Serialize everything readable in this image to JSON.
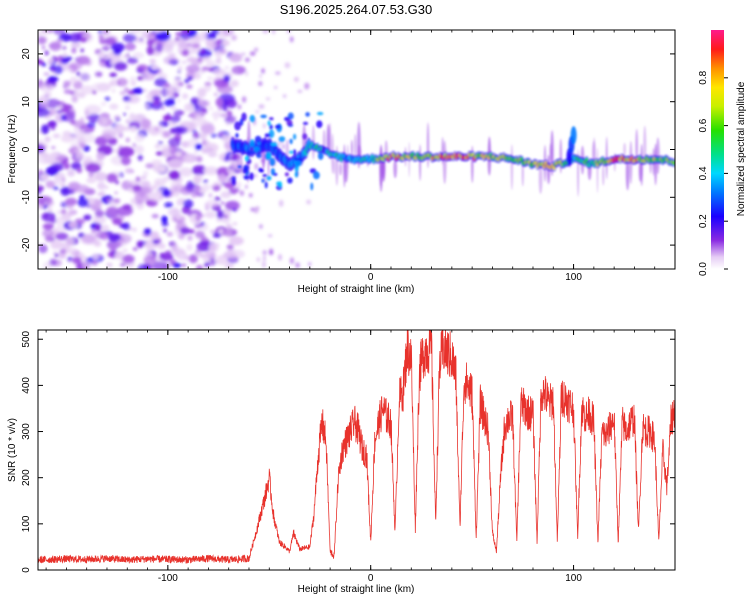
{
  "figure_title": "S196.2025.264.07.53.G30",
  "chart_data": [
    {
      "type": "heatmap",
      "description_axes": "spectrogram",
      "xlabel": "Height of straight line (km)",
      "ylabel": "Frequency (Hz)",
      "xlim": [
        -164,
        150
      ],
      "ylim": [
        -25,
        25
      ],
      "xticks": [
        -100,
        0,
        100
      ],
      "yticks": [
        -20,
        -10,
        0,
        10,
        20
      ],
      "xtick_labels": [
        "-100",
        "0",
        "100"
      ],
      "ytick_labels": [
        "-20",
        "-10",
        "0",
        "10",
        "20"
      ],
      "colorbar": {
        "label": "Normalized spectral amplitude",
        "range": [
          0,
          1
        ],
        "ticks": [
          "0.0",
          "0.2",
          "0.4",
          "0.6",
          "0.8"
        ],
        "tick_values": [
          0.0,
          0.2,
          0.4,
          0.6,
          0.8
        ]
      },
      "noise_region_x": [
        -164,
        -65
      ],
      "signal_track": {
        "x": [
          -68,
          -60,
          -50,
          -45,
          -40,
          -35,
          -30,
          -20,
          -10,
          0,
          10,
          20,
          30,
          40,
          50,
          60,
          70,
          80,
          90,
          100,
          110,
          120,
          130,
          140,
          150
        ],
        "freq_hz": [
          1,
          0,
          1,
          -1,
          -3,
          -2,
          1,
          -1,
          -2,
          -2,
          -1.5,
          -1.5,
          -1.5,
          -1.5,
          -1.5,
          -1.5,
          -2,
          -3,
          -3.5,
          -2,
          -3,
          -2,
          -2,
          -2,
          -2.5
        ],
        "amplitude": [
          0.3,
          0.35,
          0.3,
          0.3,
          0.35,
          0.35,
          0.45,
          0.5,
          0.4,
          0.45,
          0.9,
          0.7,
          0.8,
          0.9,
          0.85,
          0.7,
          0.6,
          0.7,
          0.8,
          0.5,
          0.6,
          0.9,
          0.85,
          0.7,
          0.6
        ]
      }
    },
    {
      "type": "line",
      "xlabel": "Height of straight line (km)",
      "ylabel": "SNR (10 * v/v)",
      "xlim": [
        -164,
        150
      ],
      "ylim": [
        0,
        520
      ],
      "xticks": [
        -100,
        0,
        100
      ],
      "yticks": [
        0,
        100,
        200,
        300,
        400,
        500
      ],
      "xtick_labels": [
        "-100",
        "0",
        "100"
      ],
      "ytick_labels": [
        "0",
        "100",
        "200",
        "300",
        "400",
        "500"
      ],
      "line_color": "#e8322c",
      "series": [
        {
          "name": "SNR",
          "x": [
            -164,
            -150,
            -140,
            -130,
            -120,
            -110,
            -100,
            -90,
            -80,
            -70,
            -60,
            -56,
            -52,
            -50,
            -48,
            -45,
            -42,
            -40,
            -38,
            -35,
            -30,
            -28,
            -26,
            -24,
            -22,
            -20,
            -18,
            -16,
            -14,
            -12,
            -10,
            -8,
            -6,
            -4,
            -2,
            0,
            2,
            4,
            6,
            8,
            10,
            12,
            14,
            16,
            18,
            20,
            22,
            24,
            26,
            28,
            30,
            32,
            34,
            36,
            38,
            40,
            42,
            44,
            46,
            48,
            50,
            52,
            54,
            56,
            58,
            60,
            62,
            64,
            66,
            68,
            70,
            72,
            74,
            76,
            78,
            80,
            82,
            84,
            86,
            88,
            90,
            92,
            94,
            96,
            98,
            100,
            102,
            104,
            106,
            108,
            110,
            112,
            114,
            116,
            118,
            120,
            122,
            124,
            126,
            128,
            130,
            132,
            134,
            136,
            138,
            140,
            142,
            144,
            146,
            148,
            150
          ],
          "y": [
            22,
            24,
            23,
            25,
            22,
            24,
            23,
            22,
            25,
            22,
            25,
            90,
            160,
            200,
            120,
            60,
            50,
            40,
            80,
            45,
            50,
            120,
            240,
            320,
            280,
            40,
            30,
            200,
            260,
            280,
            300,
            320,
            300,
            260,
            250,
            60,
            280,
            320,
            350,
            330,
            320,
            80,
            370,
            390,
            480,
            460,
            90,
            430,
            470,
            480,
            480,
            100,
            450,
            480,
            470,
            460,
            420,
            90,
            410,
            400,
            380,
            70,
            360,
            330,
            300,
            80,
            40,
            200,
            310,
            330,
            330,
            60,
            360,
            350,
            340,
            340,
            60,
            390,
            380,
            360,
            370,
            60,
            380,
            370,
            360,
            350,
            70,
            350,
            330,
            340,
            320,
            60,
            300,
            290,
            310,
            330,
            60,
            320,
            300,
            320,
            330,
            80,
            310,
            300,
            300,
            280,
            60,
            260,
            180,
            320,
            350
          ]
        }
      ]
    }
  ]
}
